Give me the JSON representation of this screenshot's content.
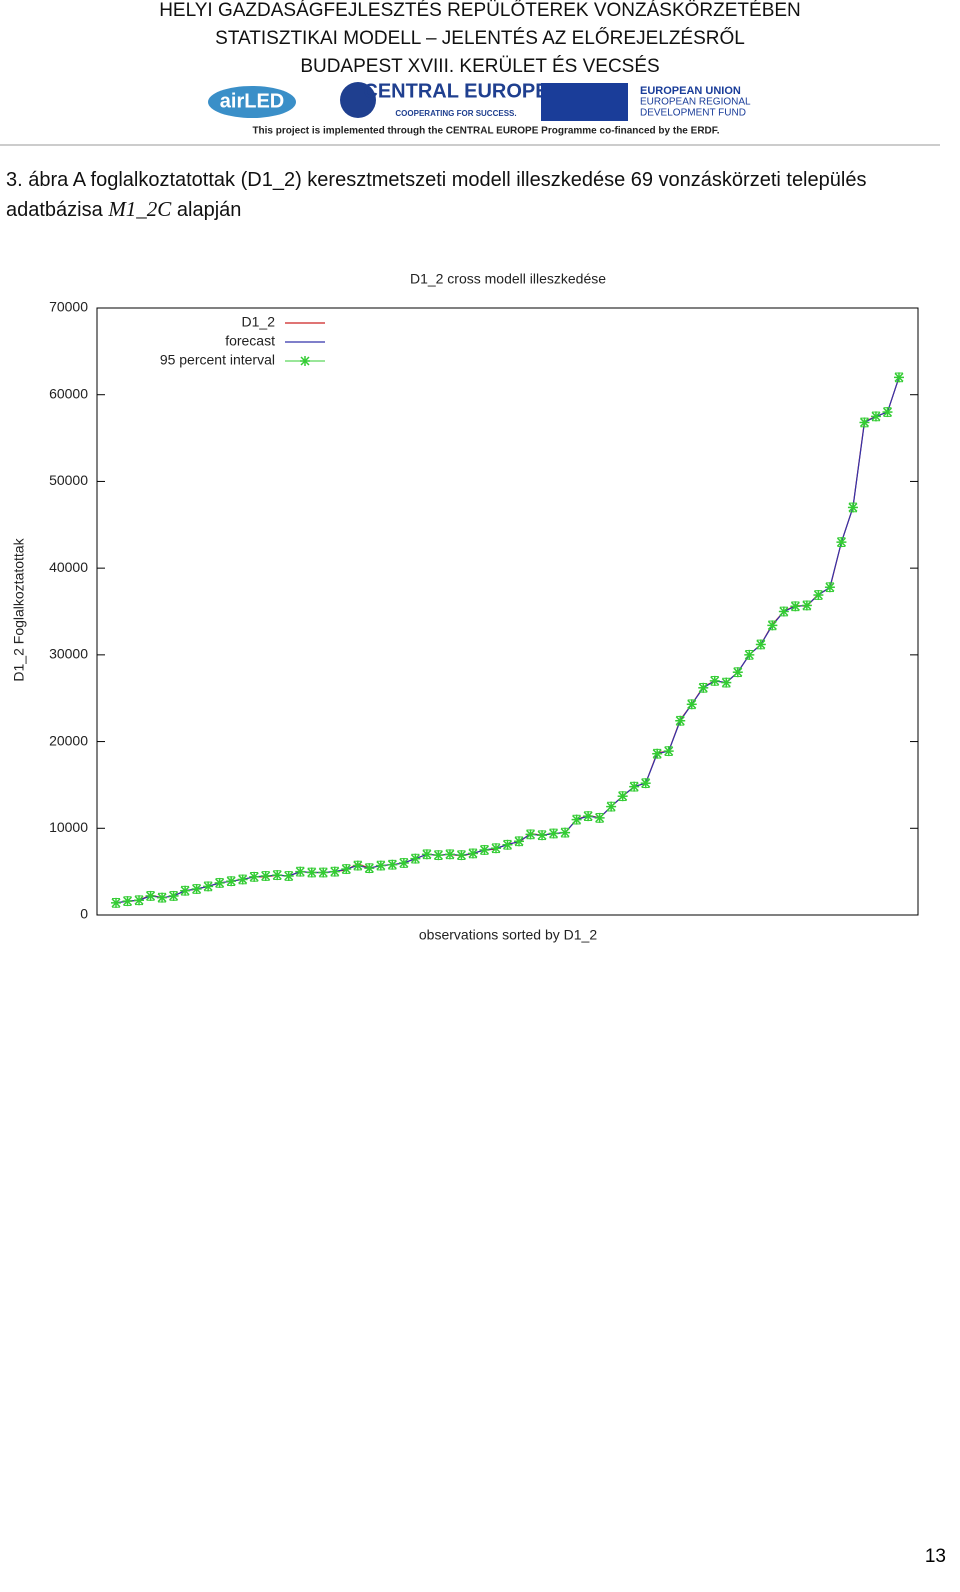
{
  "header": {
    "lines": [
      "HELYI GAZDASÁGFEJLESZTÉS REPÜLŐTEREK VONZÁSKÖRZETÉBEN",
      "STATISZTIKAI MODELL – JELENTÉS AZ ELŐREJELZÉSRŐL",
      "BUDAPEST XVIII. KERÜLET ÉS VECSÉS"
    ],
    "logos": {
      "airled": "airLED",
      "ce_title": "CENTRAL EUROPE",
      "ce_sub": "COOPERATING FOR SUCCESS.",
      "eu1": "EUROPEAN UNION",
      "eu2": "EUROPEAN REGIONAL",
      "eu3": "DEVELOPMENT FUND"
    },
    "note": "This project is implemented through the CENTRAL EUROPE Programme co-financed by the ERDF."
  },
  "caption": {
    "text": "3. ábra A foglalkoztatottak (D1_2) keresztmetszeti modell illeszkedése 69 vonzáskörzeti település adatbázisa",
    "model": "M1_2C",
    "suffix": "alapján"
  },
  "chart_data": {
    "type": "line",
    "title": "D1_2 cross modell illeszkedése",
    "x_label": "observations sorted by D1_2",
    "y_label": "D1_2 Foglalkoztatottak",
    "x": [
      1,
      2,
      3,
      4,
      5,
      6,
      7,
      8,
      9,
      10,
      11,
      12,
      13,
      14,
      15,
      16,
      17,
      18,
      19,
      20,
      21,
      22,
      23,
      24,
      25,
      26,
      27,
      28,
      29,
      30,
      31,
      32,
      33,
      34,
      35,
      36,
      37,
      38,
      39,
      40,
      41,
      42,
      43,
      44,
      45,
      46,
      47,
      48,
      49,
      50,
      51,
      52,
      53,
      54,
      55,
      56,
      57,
      58,
      59,
      60,
      61,
      62,
      63,
      64,
      65,
      66,
      67,
      68,
      69
    ],
    "xlim": [
      -0.65,
      70.65
    ],
    "ylim": [
      0,
      70000
    ],
    "yticks": [
      0,
      10000,
      20000,
      30000,
      40000,
      50000,
      60000,
      70000
    ],
    "series": [
      {
        "name": "D1_2",
        "color": "#cc2222",
        "values": [
          1400,
          1600,
          1700,
          2300,
          2000,
          2200,
          2800,
          3000,
          3300,
          3700,
          3900,
          4100,
          4400,
          4400,
          4600,
          4500,
          5000,
          4900,
          4900,
          5000,
          5200,
          5900,
          5400,
          5700,
          5800,
          6000,
          6500,
          7000,
          6900,
          7000,
          6800,
          7100,
          7500,
          7600,
          8200,
          8400,
          9400,
          9200,
          9400,
          9500,
          11000,
          11500,
          11200,
          12500,
          13700,
          14800,
          15200,
          18700,
          18900,
          22500,
          24300,
          26300,
          27000,
          26800,
          28000,
          30000,
          31200,
          33500,
          35000,
          35700,
          35600,
          37000,
          37700,
          43000,
          47000,
          56900,
          57500,
          58000,
          62000
        ]
      },
      {
        "name": "forecast",
        "color": "#3333aa",
        "values": [
          1400,
          1600,
          1700,
          2200,
          2000,
          2200,
          2800,
          3000,
          3300,
          3700,
          3900,
          4100,
          4400,
          4500,
          4600,
          4500,
          5000,
          4900,
          4900,
          5000,
          5300,
          5700,
          5400,
          5700,
          5800,
          6000,
          6500,
          7000,
          6900,
          7000,
          6900,
          7100,
          7500,
          7700,
          8100,
          8500,
          9300,
          9200,
          9400,
          9500,
          11000,
          11400,
          11200,
          12500,
          13700,
          14800,
          15200,
          18600,
          18900,
          22400,
          24300,
          26200,
          27000,
          26800,
          28000,
          30000,
          31200,
          33400,
          35000,
          35600,
          35700,
          36900,
          37800,
          43000,
          47000,
          56800,
          57500,
          58000,
          62000
        ]
      },
      {
        "name": "95 percent interval",
        "color": "#33cc33",
        "values": [
          1400,
          1600,
          1700,
          2200,
          2000,
          2200,
          2800,
          3000,
          3300,
          3700,
          3900,
          4100,
          4400,
          4500,
          4600,
          4500,
          5000,
          4900,
          4900,
          5000,
          5300,
          5700,
          5400,
          5700,
          5800,
          6000,
          6500,
          7000,
          6900,
          7000,
          6900,
          7100,
          7500,
          7700,
          8100,
          8500,
          9300,
          9200,
          9400,
          9500,
          11000,
          11400,
          11200,
          12500,
          13700,
          14800,
          15200,
          18600,
          18900,
          22400,
          24300,
          26200,
          27000,
          26800,
          28000,
          30000,
          31200,
          33400,
          35000,
          35600,
          35700,
          36900,
          37800,
          43000,
          47000,
          56800,
          57500,
          58000,
          62000
        ],
        "errors": [
          500,
          500,
          500,
          500,
          500,
          500,
          500,
          500,
          500,
          500,
          500,
          500,
          500,
          500,
          500,
          500,
          500,
          500,
          500,
          500,
          500,
          500,
          500,
          500,
          500,
          500,
          500,
          500,
          500,
          500,
          500,
          500,
          500,
          500,
          500,
          500,
          500,
          500,
          500,
          500,
          500,
          500,
          500,
          500,
          500,
          500,
          500,
          500,
          500,
          500,
          500,
          500,
          500,
          500,
          500,
          500,
          500,
          500,
          500,
          500,
          500,
          500,
          500,
          500,
          500,
          500,
          500,
          500,
          500
        ]
      }
    ]
  },
  "page_number": "13"
}
